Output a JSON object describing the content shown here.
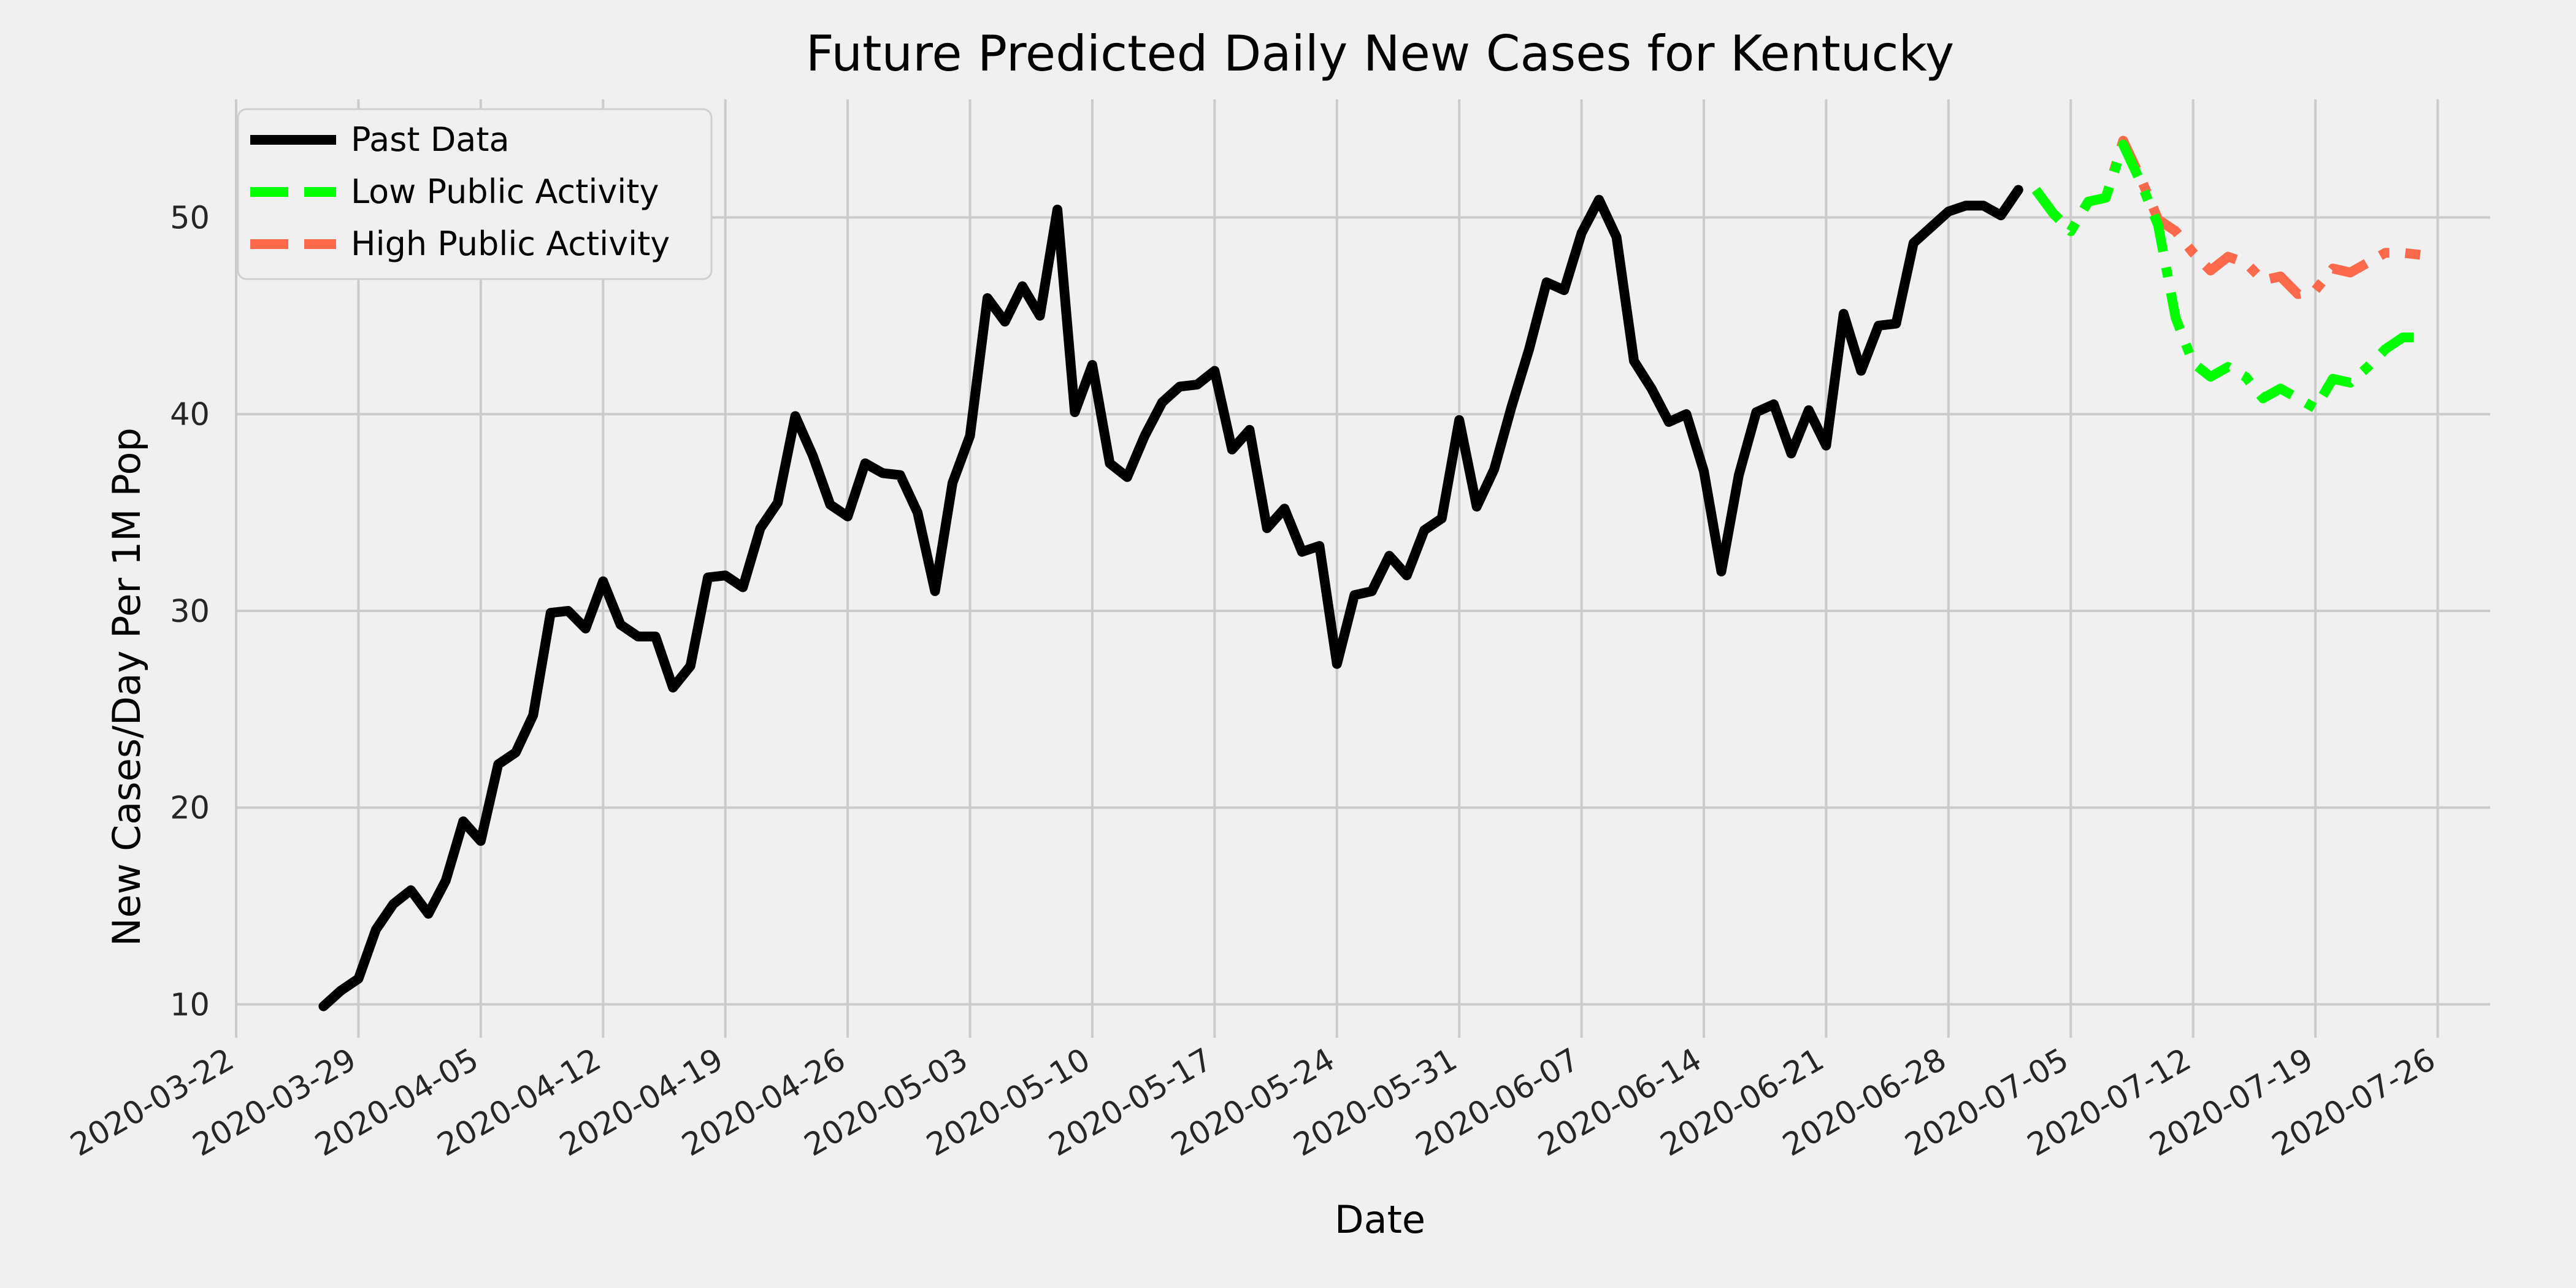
{
  "chart_data": {
    "type": "line",
    "title": "Future Predicted Daily New Cases for Kentucky",
    "xlabel": "Date",
    "ylabel": "New Cases/Day Per 1M Pop",
    "xlim": [
      "2020-03-22",
      "2020-07-29"
    ],
    "ylim": [
      8.3,
      56.0
    ],
    "grid": true,
    "legend_position": "top-left",
    "x_ticks": [
      "2020-03-22",
      "2020-03-29",
      "2020-04-05",
      "2020-04-12",
      "2020-04-19",
      "2020-04-26",
      "2020-05-03",
      "2020-05-10",
      "2020-05-17",
      "2020-05-24",
      "2020-05-31",
      "2020-06-07",
      "2020-06-14",
      "2020-06-21",
      "2020-06-28",
      "2020-07-05",
      "2020-07-12",
      "2020-07-19",
      "2020-07-26"
    ],
    "y_ticks": [
      10,
      20,
      30,
      40,
      50
    ],
    "series": [
      {
        "name": "Past Data",
        "color": "#000000",
        "style": "solid",
        "start_date": "2020-03-27",
        "values": [
          9.9,
          10.7,
          11.3,
          13.8,
          15.1,
          15.8,
          14.6,
          16.3,
          19.3,
          18.3,
          22.2,
          22.8,
          24.7,
          29.9,
          30.0,
          29.1,
          31.5,
          29.3,
          28.7,
          28.7,
          26.1,
          27.2,
          31.7,
          31.8,
          31.2,
          34.2,
          35.5,
          39.9,
          37.9,
          35.4,
          34.8,
          37.5,
          37.0,
          36.9,
          35.0,
          31.0,
          36.5,
          38.9,
          45.9,
          44.7,
          46.5,
          45.0,
          50.4,
          40.1,
          42.5,
          37.5,
          36.8,
          38.9,
          40.6,
          41.4,
          41.5,
          42.2,
          38.2,
          39.2,
          34.2,
          35.2,
          33.0,
          33.3,
          27.3,
          30.8,
          31.0,
          32.8,
          31.8,
          34.1,
          34.7,
          39.7,
          35.3,
          37.2,
          40.4,
          43.3,
          46.7,
          46.3,
          49.2,
          50.9,
          49.0,
          42.7,
          41.3,
          39.6,
          40.0,
          37.1,
          32.0,
          36.9,
          40.1,
          40.5,
          38.0,
          40.2,
          38.4,
          45.1,
          42.2,
          44.5,
          44.6,
          48.7,
          49.5,
          50.3,
          50.6,
          50.6,
          50.1,
          51.4
        ]
      },
      {
        "name": "Low Public Activity",
        "color": "#00ff00",
        "style": "dashdot",
        "start_date": "2020-07-03",
        "values": [
          51.4,
          50.2,
          49.3,
          50.8,
          51.0,
          53.7,
          51.8,
          49.6,
          44.9,
          42.6,
          41.9,
          42.4,
          41.9,
          40.8,
          41.3,
          40.8,
          40.3,
          41.8,
          41.6,
          42.4,
          43.3,
          43.9,
          43.9
        ]
      },
      {
        "name": "High Public Activity",
        "color": "#fc6a4b",
        "style": "dashdot",
        "start_date": "2020-07-03",
        "values": [
          51.4,
          50.2,
          49.3,
          50.8,
          51.0,
          53.9,
          52.0,
          49.9,
          49.3,
          48.2,
          47.3,
          48.0,
          47.7,
          46.8,
          47.0,
          46.1,
          46.3,
          47.4,
          47.2,
          47.7,
          48.2,
          48.2,
          48.1
        ]
      }
    ]
  }
}
